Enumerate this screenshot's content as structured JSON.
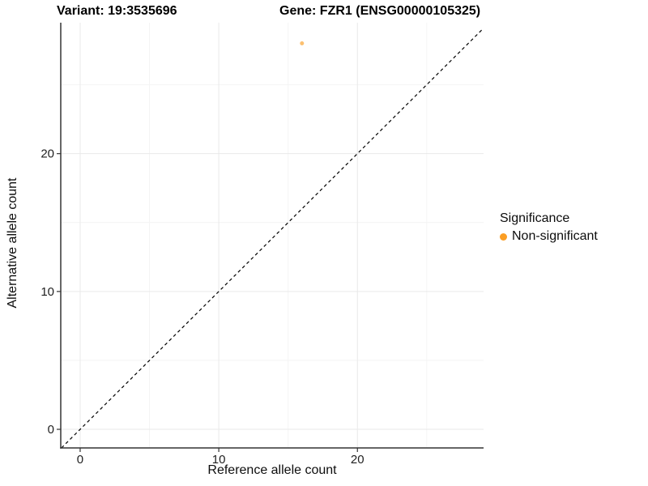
{
  "figure": {
    "background": "#ffffff",
    "axis_line_color": "#333333",
    "major_grid_color": "#e9e9e9",
    "minor_grid_color": "#f4f4f4",
    "tick_label_color": "#1f1f1f"
  },
  "chart_data": {
    "type": "scatter",
    "title_left": "Variant: 19:3535696",
    "title_right": "Gene: FZR1 (ENSG00000105325)",
    "xlabel": "Reference allele count",
    "ylabel": "Alternative allele count",
    "xlim": [
      -1.4,
      29.1
    ],
    "ylim": [
      -1.35,
      29.5
    ],
    "x_major_ticks": [
      0,
      10,
      20
    ],
    "y_major_ticks": [
      0,
      10,
      20
    ],
    "x_minor_gridlines": [
      5,
      15,
      25
    ],
    "y_minor_gridlines": [
      5,
      15,
      25
    ],
    "grid": "major and minor gridlines, light gray on white panel",
    "reference_line": {
      "kind": "identity y=x",
      "style": "dashed",
      "color": "#000000"
    },
    "series": [
      {
        "name": "Non-significant",
        "color": "#FB9E24",
        "alpha": 0.65,
        "points": [
          {
            "x": 16,
            "y": 28
          }
        ]
      }
    ],
    "legend": {
      "title": "Significance",
      "position": "right",
      "items": [
        {
          "label": "Non-significant",
          "color": "#FB9E24",
          "marker": "circle"
        }
      ]
    }
  }
}
